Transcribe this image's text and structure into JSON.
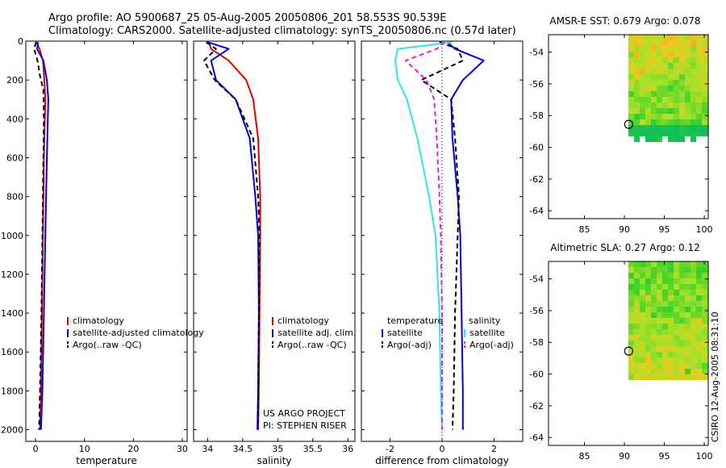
{
  "header": {
    "title_line1": "Argo profile: AO 5900687_25 05-Aug-2005 20050806_201 58.553S 90.539E",
    "title_line2": "Climatology: CARS2000. Satellite-adjusted climatology: synTS_20050806.nc (0.57d later)"
  },
  "footer": {
    "stamp": "CSIRO 12-Aug-2005 08:31:10",
    "project": "US ARGO PROJECT",
    "pi": "PI: STEPHEN RISER"
  },
  "colors": {
    "climatology": "#e00000",
    "satellite": "#0000e6",
    "argo": "#000000",
    "cyan": "#33e6e6",
    "magenta": "#e020e0"
  },
  "chart_data": [
    {
      "type": "line",
      "id": "temperature",
      "xlabel": "temperature",
      "ylabel": "",
      "xlim": [
        -2,
        31
      ],
      "ylim": [
        2060,
        0
      ],
      "xticks": [
        0,
        10,
        20,
        30
      ],
      "xtick_labels": [
        "0",
        "10",
        "20",
        "30"
      ],
      "yticks": [
        0,
        200,
        400,
        600,
        800,
        1000,
        1200,
        1400,
        1600,
        1800,
        2000
      ],
      "ytick_labels": [
        "0",
        "200",
        "400",
        "600",
        "800",
        "1000",
        "1200",
        "1400",
        "1600",
        "1800",
        "2000"
      ],
      "legend": [
        "climatology",
        "satellite-adjusted climatology",
        "Argo(..raw -QC)"
      ],
      "series": [
        {
          "name": "climatology",
          "color_key": "climatology",
          "style": "solid",
          "x": [
            0.2,
            0.8,
            1.5,
            1.8,
            2.0,
            1.9,
            1.7,
            1.5,
            1.3,
            1.1,
            0.9
          ],
          "y": [
            5,
            40,
            100,
            200,
            300,
            400,
            600,
            1000,
            1400,
            1800,
            2000
          ]
        },
        {
          "name": "satellite-adjusted climatology",
          "color_key": "satellite",
          "style": "solid",
          "x": [
            0.5,
            0.3,
            1.6,
            2.3,
            2.6,
            2.5,
            2.3,
            2.0,
            1.7,
            1.4,
            1.1
          ],
          "y": [
            5,
            40,
            100,
            200,
            300,
            400,
            600,
            1000,
            1400,
            1800,
            2000
          ]
        },
        {
          "name": "Argo(..raw -QC)",
          "color_key": "argo",
          "style": "dashed",
          "x": [
            0.1,
            -0.3,
            0.4,
            0.9,
            1.6,
            1.7,
            1.6,
            1.4,
            1.2,
            0.9,
            0.7
          ],
          "y": [
            5,
            40,
            100,
            180,
            250,
            400,
            600,
            1000,
            1400,
            1800,
            2000
          ]
        }
      ]
    },
    {
      "type": "line",
      "id": "salinity",
      "xlabel": "salinity",
      "ylabel": "",
      "xlim": [
        33.8,
        36.1
      ],
      "ylim": [
        2060,
        0
      ],
      "xticks": [
        34,
        34.5,
        35,
        35.5,
        36
      ],
      "xtick_labels": [
        "34",
        "34.5",
        "35",
        "35.5",
        "36"
      ],
      "yticks": [
        0,
        200,
        400,
        600,
        800,
        1000,
        1200,
        1400,
        1600,
        1800,
        2000
      ],
      "legend": [
        "climatology",
        "satellite adj. clim.",
        "Argo(..raw -QC)"
      ],
      "series": [
        {
          "name": "climatology",
          "color_key": "climatology",
          "style": "solid",
          "x": [
            34.02,
            34.05,
            34.3,
            34.55,
            34.65,
            34.72,
            34.75,
            34.75,
            34.74,
            34.73,
            34.72
          ],
          "y": [
            5,
            40,
            100,
            200,
            300,
            500,
            800,
            1000,
            1400,
            1800,
            2000
          ]
        },
        {
          "name": "satellite adj. clim.",
          "color_key": "satellite",
          "style": "solid",
          "x": [
            34.0,
            34.3,
            34.05,
            34.12,
            34.4,
            34.6,
            34.68,
            34.72,
            34.73,
            34.72,
            34.71
          ],
          "y": [
            5,
            40,
            100,
            200,
            300,
            500,
            800,
            1000,
            1400,
            1800,
            2000
          ]
        },
        {
          "name": "Argo(..raw -QC)",
          "color_key": "argo",
          "style": "dashed",
          "x": [
            33.98,
            34.12,
            33.95,
            34.1,
            34.4,
            34.65,
            34.72,
            34.74,
            34.73,
            34.72,
            34.72
          ],
          "y": [
            5,
            40,
            100,
            200,
            300,
            500,
            800,
            1000,
            1400,
            1800,
            2000
          ]
        }
      ]
    },
    {
      "type": "line",
      "id": "difference",
      "xlabel": "difference from climatology",
      "ylabel": "",
      "xlim": [
        -3.1,
        3.1
      ],
      "ylim": [
        2060,
        0
      ],
      "xticks": [
        -2,
        0,
        2
      ],
      "xtick_labels": [
        "-2",
        "0",
        "2"
      ],
      "yticks": [
        0,
        200,
        400,
        600,
        800,
        1000,
        1200,
        1400,
        1600,
        1800,
        2000
      ],
      "legend_left_header": "temperature",
      "legend_right_header": "salinity",
      "legend_left": [
        "satellite",
        "Argo(-adj)"
      ],
      "legend_right": [
        "satellite",
        "Argo(-adj)"
      ],
      "zero_line": 0,
      "series": [
        {
          "name": "temperature satellite",
          "color_key": "satellite",
          "style": "solid",
          "x": [
            0.2,
            0.5,
            1.6,
            0.8,
            0.35,
            0.4,
            0.6,
            0.7,
            0.75,
            0.8,
            0.8
          ],
          "y": [
            5,
            40,
            100,
            200,
            300,
            500,
            800,
            1000,
            1400,
            1800,
            2000
          ]
        },
        {
          "name": "temperature Argo(-adj)",
          "color_key": "argo",
          "style": "dashed",
          "x": [
            -0.1,
            0.6,
            0.8,
            -0.8,
            0.35,
            0.5,
            0.65,
            0.6,
            0.5,
            0.45,
            0.4
          ],
          "y": [
            5,
            40,
            100,
            200,
            300,
            500,
            800,
            1000,
            1400,
            1800,
            2000
          ]
        },
        {
          "name": "salinity satellite",
          "color_key": "cyan",
          "style": "solid",
          "x": [
            0.4,
            -1.7,
            -1.8,
            -1.7,
            -1.35,
            -0.95,
            -0.5,
            -0.25,
            -0.1,
            -0.05,
            0.0
          ],
          "y": [
            5,
            40,
            100,
            200,
            300,
            500,
            800,
            1000,
            1400,
            1800,
            2000
          ]
        },
        {
          "name": "salinity Argo(-adj)",
          "color_key": "magenta",
          "style": "dashed",
          "x": [
            0.1,
            -0.2,
            -1.4,
            -0.6,
            -0.3,
            -0.2,
            -0.1,
            -0.05,
            0.0,
            0.0,
            0.0
          ],
          "y": [
            5,
            40,
            100,
            200,
            300,
            500,
            800,
            1000,
            1400,
            1800,
            2000
          ]
        }
      ]
    },
    {
      "type": "heatmap",
      "id": "sst",
      "title": "AMSR-E SST: 0.679 Argo: 0.078",
      "xlim": [
        80.5,
        100.5
      ],
      "ylim": [
        -64.5,
        -52.9
      ],
      "xticks": [
        85,
        90,
        95,
        100
      ],
      "xtick_labels": [
        "85",
        "90",
        "95",
        "100"
      ],
      "yticks": [
        -64,
        -62,
        -60,
        -58,
        -56,
        -54
      ],
      "ytick_labels": [
        "-64",
        "-62",
        "-60",
        "-58",
        "-56",
        "-54"
      ],
      "data_extent_lon": [
        90.5,
        100.5
      ],
      "data_extent_lat": [
        -59.6,
        -52.9
      ],
      "argo_marker": {
        "lon": 90.539,
        "lat": -58.553
      }
    },
    {
      "type": "heatmap",
      "id": "sla",
      "title": "Altimetric SLA: 0.27 Argo: 0.12",
      "xlim": [
        80.5,
        100.5
      ],
      "ylim": [
        -64.5,
        -52.9
      ],
      "xticks": [
        85,
        90,
        95,
        100
      ],
      "xtick_labels": [
        "85",
        "90",
        "95",
        "100"
      ],
      "yticks": [
        -64,
        -62,
        -60,
        -58,
        -56,
        -54
      ],
      "ytick_labels": [
        "-64",
        "-62",
        "-60",
        "-58",
        "-56",
        "-54"
      ],
      "data_extent_lon": [
        90.5,
        100.5
      ],
      "data_extent_lat": [
        -60.1,
        -52.9
      ],
      "argo_marker": {
        "lon": 90.539,
        "lat": -58.553
      }
    }
  ]
}
